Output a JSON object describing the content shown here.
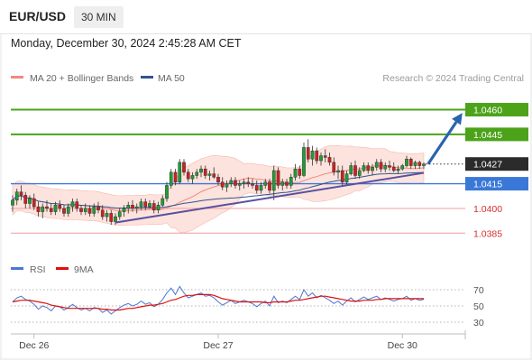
{
  "header": {
    "symbol": "EUR/USD",
    "timeframe": "30 MIN",
    "datetime": "Monday, December 30, 2024 2:45:28 AM CET"
  },
  "chart_data": {
    "type": "candlestick",
    "symbol": "EUR/USD",
    "interval": "30 MIN",
    "legend_main": [
      {
        "name": "MA 20 + Bollinger Bands",
        "color": "#f08a80"
      },
      {
        "name": "MA 50",
        "color": "#2e5593"
      }
    ],
    "credit": "Research © 2024 Trading Central",
    "ylim": [
      1.0372,
      1.0474
    ],
    "current_price": 1.0427,
    "levels": [
      {
        "value": 1.046,
        "label": "1.0460",
        "kind": "resistance",
        "color": "#4ca31a"
      },
      {
        "value": 1.0445,
        "label": "1.0445",
        "kind": "resistance",
        "color": "#4ca31a"
      },
      {
        "value": 1.0415,
        "label": "1.0415",
        "kind": "pivot",
        "color": "#3a78d8"
      },
      {
        "value": 1.04,
        "label": "1.0400",
        "kind": "support",
        "color": "#d32f2f"
      },
      {
        "value": 1.0385,
        "label": "1.0385",
        "kind": "support",
        "color": "#d32f2f"
      }
    ],
    "x_labels": [
      {
        "label": "Dec 26",
        "bar": 5
      },
      {
        "label": "Dec 27",
        "bar": 48
      },
      {
        "label": "Dec 30",
        "bar": 91
      }
    ],
    "trendline": {
      "from_bar": 24,
      "from_price": 1.03914,
      "to_bar": 96,
      "to_price": 1.04216
    },
    "forecast_arrow": {
      "from_bar": 97,
      "from_price": 1.0427,
      "to_bar": 105,
      "to_price": 1.0458
    },
    "ohlc": [
      [
        1.0402,
        1.0408,
        1.0398,
        1.0405
      ],
      [
        1.0405,
        1.0412,
        1.0402,
        1.041
      ],
      [
        1.041,
        1.0414,
        1.0405,
        1.0408
      ],
      [
        1.0408,
        1.041,
        1.04,
        1.0403
      ],
      [
        1.0403,
        1.0408,
        1.04,
        1.0406
      ],
      [
        1.0406,
        1.0409,
        1.0399,
        1.0401
      ],
      [
        1.0401,
        1.0404,
        1.0395,
        1.0398
      ],
      [
        1.0398,
        1.0403,
        1.0394,
        1.0401
      ],
      [
        1.0401,
        1.0405,
        1.0398,
        1.04
      ],
      [
        1.04,
        1.0403,
        1.0396,
        1.0398
      ],
      [
        1.0398,
        1.0404,
        1.0396,
        1.0402
      ],
      [
        1.0402,
        1.0405,
        1.0398,
        1.04
      ],
      [
        1.04,
        1.0402,
        1.0395,
        1.0397
      ],
      [
        1.0397,
        1.0403,
        1.0395,
        1.0401
      ],
      [
        1.0401,
        1.0406,
        1.0398,
        1.0404
      ],
      [
        1.0404,
        1.0406,
        1.0398,
        1.04
      ],
      [
        1.04,
        1.0402,
        1.0396,
        1.0398
      ],
      [
        1.0398,
        1.0403,
        1.0396,
        1.04
      ],
      [
        1.04,
        1.0402,
        1.0395,
        1.0397
      ],
      [
        1.0397,
        1.0403,
        1.0395,
        1.0401
      ],
      [
        1.0401,
        1.0404,
        1.0397,
        1.0399
      ],
      [
        1.0399,
        1.0402,
        1.0393,
        1.0395
      ],
      [
        1.0395,
        1.0399,
        1.0392,
        1.0397
      ],
      [
        1.0397,
        1.0399,
        1.039,
        1.0392
      ],
      [
        1.0392,
        1.0397,
        1.039,
        1.0395
      ],
      [
        1.0395,
        1.04,
        1.0393,
        1.0398
      ],
      [
        1.0398,
        1.0402,
        1.0395,
        1.04
      ],
      [
        1.04,
        1.0404,
        1.0397,
        1.0402
      ],
      [
        1.0402,
        1.0405,
        1.0398,
        1.04
      ],
      [
        1.04,
        1.0403,
        1.0397,
        1.0401
      ],
      [
        1.0401,
        1.0406,
        1.0399,
        1.0404
      ],
      [
        1.0404,
        1.0406,
        1.0399,
        1.0401
      ],
      [
        1.0401,
        1.0405,
        1.04,
        1.0403
      ],
      [
        1.0403,
        1.0405,
        1.0397,
        1.0399
      ],
      [
        1.0399,
        1.0404,
        1.0397,
        1.0402
      ],
      [
        1.0402,
        1.0408,
        1.0401,
        1.0406
      ],
      [
        1.0406,
        1.0416,
        1.0404,
        1.0414
      ],
      [
        1.0414,
        1.0424,
        1.0412,
        1.0422
      ],
      [
        1.0422,
        1.0424,
        1.0414,
        1.0416
      ],
      [
        1.0416,
        1.043,
        1.0415,
        1.0428
      ],
      [
        1.0428,
        1.043,
        1.042,
        1.0422
      ],
      [
        1.0422,
        1.0424,
        1.0416,
        1.0418
      ],
      [
        1.0418,
        1.0422,
        1.0415,
        1.042
      ],
      [
        1.042,
        1.0424,
        1.0418,
        1.0422
      ],
      [
        1.0422,
        1.0426,
        1.0419,
        1.0424
      ],
      [
        1.0424,
        1.0426,
        1.0418,
        1.042
      ],
      [
        1.042,
        1.0423,
        1.0417,
        1.0421
      ],
      [
        1.0421,
        1.0425,
        1.0418,
        1.0419
      ],
      [
        1.0419,
        1.0421,
        1.0414,
        1.0416
      ],
      [
        1.0416,
        1.0419,
        1.0411,
        1.0413
      ],
      [
        1.0413,
        1.0417,
        1.041,
        1.0415
      ],
      [
        1.0415,
        1.0419,
        1.0413,
        1.0417
      ],
      [
        1.0417,
        1.0419,
        1.0412,
        1.0414
      ],
      [
        1.0414,
        1.0417,
        1.0411,
        1.0415
      ],
      [
        1.0415,
        1.0418,
        1.0412,
        1.0416
      ],
      [
        1.0416,
        1.0419,
        1.0413,
        1.0415
      ],
      [
        1.0415,
        1.0418,
        1.0412,
        1.0414
      ],
      [
        1.0414,
        1.0417,
        1.0409,
        1.0411
      ],
      [
        1.0411,
        1.0416,
        1.0409,
        1.0414
      ],
      [
        1.0414,
        1.0418,
        1.0412,
        1.0416
      ],
      [
        1.0416,
        1.0418,
        1.0409,
        1.0411
      ],
      [
        1.0411,
        1.0426,
        1.0405,
        1.0423
      ],
      [
        1.0423,
        1.0425,
        1.0412,
        1.0414
      ],
      [
        1.0414,
        1.0418,
        1.0411,
        1.0416
      ],
      [
        1.0416,
        1.0418,
        1.0412,
        1.0414
      ],
      [
        1.0414,
        1.0421,
        1.0412,
        1.0419
      ],
      [
        1.0419,
        1.0427,
        1.0417,
        1.0424
      ],
      [
        1.0424,
        1.0426,
        1.0418,
        1.042
      ],
      [
        1.042,
        1.044,
        1.0419,
        1.0437
      ],
      [
        1.0437,
        1.0442,
        1.0428,
        1.043
      ],
      [
        1.043,
        1.0438,
        1.0426,
        1.0435
      ],
      [
        1.0435,
        1.0437,
        1.0427,
        1.0429
      ],
      [
        1.0429,
        1.0434,
        1.0426,
        1.0432
      ],
      [
        1.0432,
        1.0436,
        1.0428,
        1.0431
      ],
      [
        1.0431,
        1.0434,
        1.0426,
        1.0428
      ],
      [
        1.0428,
        1.0431,
        1.042,
        1.0422
      ],
      [
        1.0422,
        1.0426,
        1.0418,
        1.0423
      ],
      [
        1.0423,
        1.0426,
        1.0414,
        1.0416
      ],
      [
        1.0416,
        1.0423,
        1.0414,
        1.0421
      ],
      [
        1.0421,
        1.0428,
        1.042,
        1.0426
      ],
      [
        1.0426,
        1.0429,
        1.0418,
        1.042
      ],
      [
        1.042,
        1.0425,
        1.0418,
        1.0423
      ],
      [
        1.0423,
        1.0428,
        1.0422,
        1.0426
      ],
      [
        1.0426,
        1.0428,
        1.0421,
        1.0423
      ],
      [
        1.0423,
        1.0427,
        1.042,
        1.0425
      ],
      [
        1.0425,
        1.043,
        1.0423,
        1.0428
      ],
      [
        1.0428,
        1.043,
        1.0422,
        1.0424
      ],
      [
        1.0424,
        1.0428,
        1.0422,
        1.0426
      ],
      [
        1.0426,
        1.0429,
        1.0423,
        1.0425
      ],
      [
        1.0425,
        1.0428,
        1.0422,
        1.0423
      ],
      [
        1.0423,
        1.0426,
        1.0421,
        1.0424
      ],
      [
        1.0424,
        1.0427,
        1.0423,
        1.0426
      ],
      [
        1.0426,
        1.0432,
        1.0425,
        1.043
      ],
      [
        1.043,
        1.0431,
        1.0424,
        1.0426
      ],
      [
        1.0426,
        1.0429,
        1.0424,
        1.0428
      ],
      [
        1.0428,
        1.0429,
        1.0424,
        1.0426
      ],
      [
        1.0426,
        1.0428,
        1.0424,
        1.0427
      ]
    ],
    "rsi_panel": {
      "legend": [
        {
          "name": "RSI",
          "color": "#4a78d0"
        },
        {
          "name": "9MA",
          "color": "#e01010"
        }
      ],
      "ylim": [
        20,
        80
      ],
      "ticks": [
        {
          "value": 70,
          "label": "70"
        },
        {
          "value": 50,
          "label": "50"
        },
        {
          "value": 30,
          "label": "30"
        }
      ],
      "rsi": [
        55,
        60,
        62,
        58,
        56,
        52,
        46,
        50,
        48,
        44,
        50,
        49,
        45,
        48,
        52,
        48,
        45,
        47,
        44,
        48,
        47,
        42,
        45,
        40,
        44,
        48,
        51,
        53,
        50,
        52,
        56,
        52,
        54,
        49,
        52,
        58,
        66,
        72,
        64,
        74,
        66,
        60,
        62,
        64,
        66,
        62,
        63,
        60,
        55,
        51,
        54,
        57,
        53,
        55,
        57,
        55,
        53,
        49,
        53,
        56,
        50,
        62,
        54,
        56,
        54,
        58,
        62,
        58,
        70,
        62,
        66,
        60,
        63,
        60,
        57,
        53,
        56,
        51,
        56,
        60,
        55,
        58,
        61,
        58,
        60,
        62,
        58,
        60,
        58,
        56,
        58,
        59,
        62,
        57,
        59,
        57,
        58
      ],
      "ma9": [
        55,
        56,
        57,
        57,
        57,
        56,
        55,
        54,
        53,
        51,
        50,
        49,
        48,
        47,
        47,
        47,
        47,
        47,
        47,
        47,
        47,
        46,
        46,
        45,
        45,
        45,
        46,
        47,
        47,
        48,
        49,
        50,
        51,
        51,
        52,
        53,
        55,
        57,
        58,
        60,
        62,
        63,
        63,
        64,
        64,
        64,
        64,
        63,
        61,
        59,
        58,
        57,
        56,
        55,
        55,
        55,
        55,
        55,
        55,
        54,
        54,
        55,
        55,
        55,
        55,
        56,
        57,
        57,
        58,
        59,
        60,
        61,
        62,
        62,
        61,
        60,
        59,
        58,
        57,
        56,
        56,
        56,
        57,
        57,
        57,
        58,
        58,
        59,
        59,
        59,
        59,
        59,
        59,
        59,
        59,
        59,
        59
      ]
    }
  }
}
